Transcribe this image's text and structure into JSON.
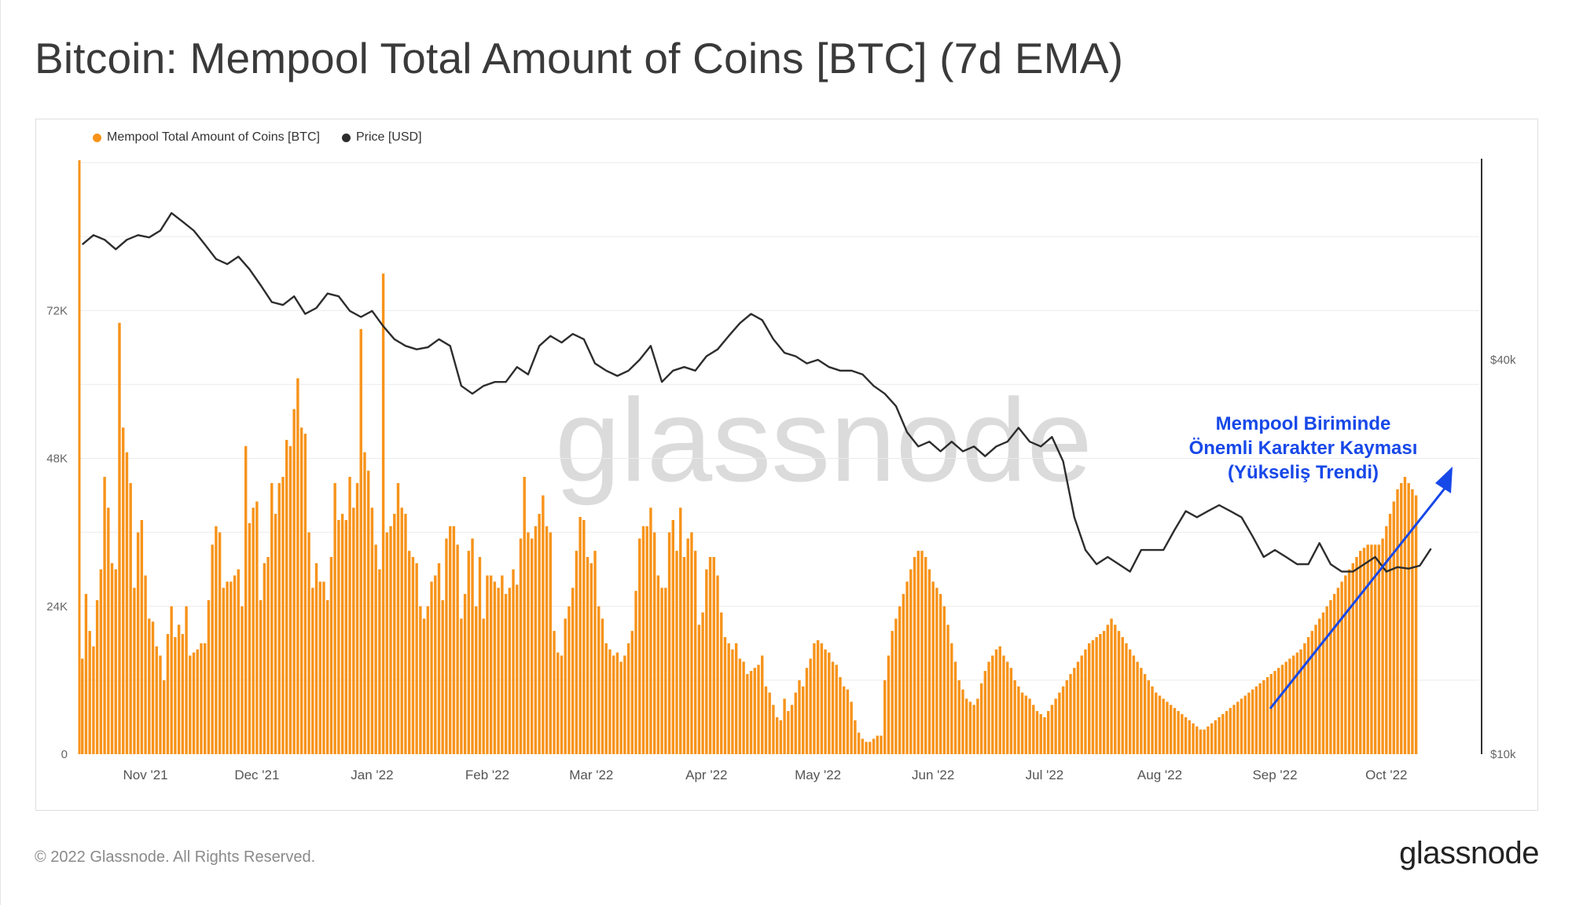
{
  "title": "Bitcoin: Mempool Total Amount of Coins [BTC] (7d EMA)",
  "footer": "© 2022 Glassnode. All Rights Reserved.",
  "brand": "glassnode",
  "watermark": "glassnode",
  "colors": {
    "bar": "#f7931a",
    "price": "#2d2d2d",
    "annotation": "#1748e8",
    "grid": "#ebebeb"
  },
  "chart_data": {
    "type": "bar",
    "title": "Bitcoin: Mempool Total Amount of Coins [BTC] (7d EMA)",
    "legend": [
      "Mempool Total Amount of Coins [BTC]",
      "Price [USD]"
    ],
    "legend_position": "top-left",
    "grid": true,
    "y_left": {
      "ticks": [
        "0",
        "24K",
        "48K",
        "72K"
      ],
      "tick_values": [
        0,
        24000,
        48000,
        72000
      ],
      "range": [
        0,
        96000
      ]
    },
    "y_right": {
      "scale": "log",
      "ticks": [
        "$10k",
        "$40k"
      ],
      "tick_values": [
        10000,
        40000
      ],
      "range": [
        10000,
        80000
      ]
    },
    "x_ticks": [
      "Nov '21",
      "Dec '21",
      "Jan '22",
      "Feb '22",
      "Mar '22",
      "Apr '22",
      "May '22",
      "Jun '22",
      "Jul '22",
      "Aug '22",
      "Sep '22",
      "Oct '22"
    ],
    "x_range": [
      "2021-10-14",
      "2022-10-26"
    ],
    "series": [
      {
        "name": "Mempool Total Amount of Coins [BTC]",
        "type": "bar",
        "interval_days": 1,
        "start": "2021-10-15",
        "values": [
          15500,
          26000,
          20000,
          17500,
          25000,
          30000,
          45000,
          40000,
          31000,
          30000,
          70000,
          53000,
          49000,
          44000,
          27000,
          36000,
          38000,
          29000,
          22000,
          21500,
          17500,
          16000,
          12000,
          19500,
          24000,
          19000,
          21000,
          19500,
          24000,
          16000,
          16500,
          17000,
          18000,
          18000,
          25000,
          34000,
          37000,
          36000,
          27000,
          28000,
          28000,
          29000,
          30000,
          24000,
          50000,
          37500,
          40000,
          41000,
          25000,
          31000,
          32000,
          44000,
          39000,
          44000,
          45000,
          51000,
          50000,
          56000,
          61000,
          53000,
          52000,
          36000,
          27000,
          31000,
          28000,
          28000,
          25000,
          32000,
          44000,
          38000,
          39000,
          38000,
          45000,
          40000,
          44000,
          69000,
          49000,
          46000,
          40000,
          34000,
          30000,
          78000,
          36000,
          37000,
          39000,
          44000,
          40000,
          39000,
          33000,
          32000,
          31000,
          24000,
          22000,
          24000,
          28000,
          29000,
          31000,
          25000,
          35000,
          37000,
          37000,
          34000,
          22000,
          26000,
          33000,
          35000,
          24000,
          32000,
          22000,
          29000,
          29000,
          28000,
          27000,
          29000,
          26000,
          27000,
          30000,
          27500,
          35000,
          45000,
          36000,
          35000,
          37000,
          39000,
          42000,
          37000,
          36000,
          20000,
          16500,
          16000,
          22000,
          24000,
          27000,
          33000,
          38500,
          38000,
          32000,
          31000,
          33000,
          24000,
          22000,
          18000,
          17000,
          16000,
          16500,
          15000,
          16000,
          18000,
          20000,
          26500,
          35000,
          37000,
          37000,
          40000,
          36000,
          29000,
          27000,
          27000,
          36000,
          38000,
          33000,
          40000,
          32000,
          35000,
          36000,
          33000,
          21000,
          23000,
          30000,
          32000,
          32000,
          29000,
          23000,
          19000,
          18000,
          17000,
          18000,
          15500,
          15000,
          13000,
          13500,
          14000,
          14500,
          16000,
          11000,
          10000,
          8000,
          6000,
          5500,
          9000,
          7000,
          8000,
          10000,
          12000,
          11000,
          14000,
          15500,
          18000,
          18500,
          18000,
          17000,
          16500,
          15000,
          14500,
          12500,
          11000,
          10500,
          8500,
          5500,
          3500,
          2500,
          2000,
          2000,
          2500,
          3000,
          3000,
          12000,
          16000,
          20000,
          22000,
          24000,
          26000,
          28000,
          30000,
          32000,
          33000,
          33000,
          32000,
          30000,
          28000,
          27000,
          26000,
          24000,
          21000,
          18000,
          15000,
          12000,
          10500,
          9000,
          8500,
          8000,
          9000,
          11500,
          13500,
          15000,
          16000,
          17000,
          17500,
          16000,
          15000,
          14000,
          12000,
          11000,
          10000,
          9500,
          9000,
          8000,
          7000,
          6500,
          6000,
          7000,
          8000,
          9000,
          10000,
          11000,
          12000,
          13000,
          14000,
          15000,
          16000,
          17000,
          18000,
          18500,
          19000,
          19500,
          20000,
          21000,
          22000,
          21000,
          20000,
          19000,
          18000,
          17000,
          16000,
          15000,
          14000,
          13000,
          12000,
          11000,
          10000,
          9500,
          9000,
          8500,
          8000,
          7500,
          7000,
          6500,
          6000,
          5500,
          5000,
          4500,
          4000,
          4000,
          4500,
          5000,
          5500,
          6000,
          6500,
          7000,
          7500,
          8000,
          8500,
          9000,
          9500,
          10000,
          10500,
          11000,
          11500,
          12000,
          12500,
          13000,
          13500,
          14000,
          14500,
          15000,
          15500,
          16000,
          16500,
          17000,
          18000,
          19000,
          20000,
          21000,
          22000,
          23000,
          24000,
          25000,
          26000,
          27000,
          28000,
          29000,
          30000,
          31000,
          32000,
          33000,
          33500,
          34000,
          34000,
          34000,
          34000,
          35000,
          37000,
          39000,
          41000,
          43000,
          44000,
          45000,
          44000,
          43000,
          42000
        ]
      },
      {
        "name": "Price [USD]",
        "type": "line",
        "interval_days": 3,
        "start": "2021-10-15",
        "values": [
          60000,
          62000,
          61000,
          59000,
          61000,
          62000,
          61500,
          63000,
          67000,
          65000,
          63000,
          60000,
          57000,
          56000,
          57500,
          55000,
          52000,
          49000,
          48500,
          50000,
          47000,
          48000,
          50500,
          50000,
          47500,
          46500,
          47500,
          45000,
          43000,
          42000,
          41500,
          41800,
          43000,
          42000,
          36500,
          35500,
          36500,
          37000,
          37000,
          39000,
          38000,
          42000,
          43500,
          42500,
          43800,
          43000,
          39500,
          38500,
          37800,
          38500,
          40000,
          42000,
          37000,
          38500,
          39000,
          38500,
          40500,
          41500,
          43500,
          45500,
          47000,
          46000,
          43000,
          41000,
          40500,
          39500,
          40000,
          39000,
          38500,
          38500,
          38000,
          36500,
          35500,
          34000,
          31000,
          29500,
          30000,
          29000,
          30000,
          29000,
          29500,
          28500,
          29500,
          30000,
          31500,
          30000,
          29500,
          30500,
          28000,
          23000,
          20500,
          19500,
          20000,
          19500,
          19000,
          20500,
          20500,
          20500,
          22000,
          23500,
          23000,
          23500,
          24000,
          23500,
          23000,
          21500,
          20000,
          20500,
          20000,
          19500,
          19500,
          21000,
          19500,
          19000,
          19000,
          19500,
          20000,
          19000,
          19300,
          19200,
          19400,
          20600
        ]
      }
    ],
    "annotations": [
      {
        "text": [
          "Mempool Biriminde",
          "Önemli Karakter Kayması",
          "(Yükseliş Trendi)"
        ]
      }
    ]
  }
}
